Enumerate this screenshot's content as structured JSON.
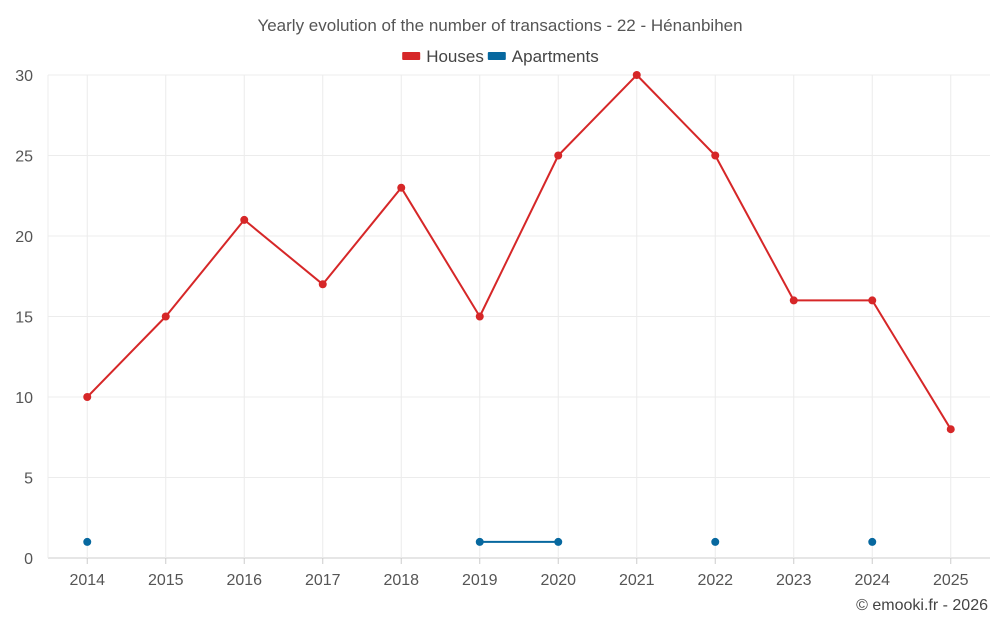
{
  "chart_data": {
    "type": "line",
    "title": "Yearly evolution of the number of transactions - 22 - Hénanbihen",
    "categories": [
      "2014",
      "2015",
      "2016",
      "2017",
      "2018",
      "2019",
      "2020",
      "2021",
      "2022",
      "2023",
      "2024",
      "2025"
    ],
    "ylim": [
      0,
      30
    ],
    "yticks": [
      0,
      5,
      10,
      15,
      20,
      25,
      30
    ],
    "grid": true,
    "legend_position": "top-center",
    "series": [
      {
        "name": "Houses",
        "color": "#d62728",
        "values": [
          10,
          15,
          21,
          17,
          23,
          15,
          25,
          30,
          25,
          16,
          16,
          8
        ]
      },
      {
        "name": "Apartments",
        "color": "#07689f",
        "values": [
          1,
          null,
          null,
          null,
          null,
          1,
          1,
          null,
          1,
          null,
          1,
          null
        ]
      }
    ],
    "credit": "© emooki.fr - 2026"
  }
}
